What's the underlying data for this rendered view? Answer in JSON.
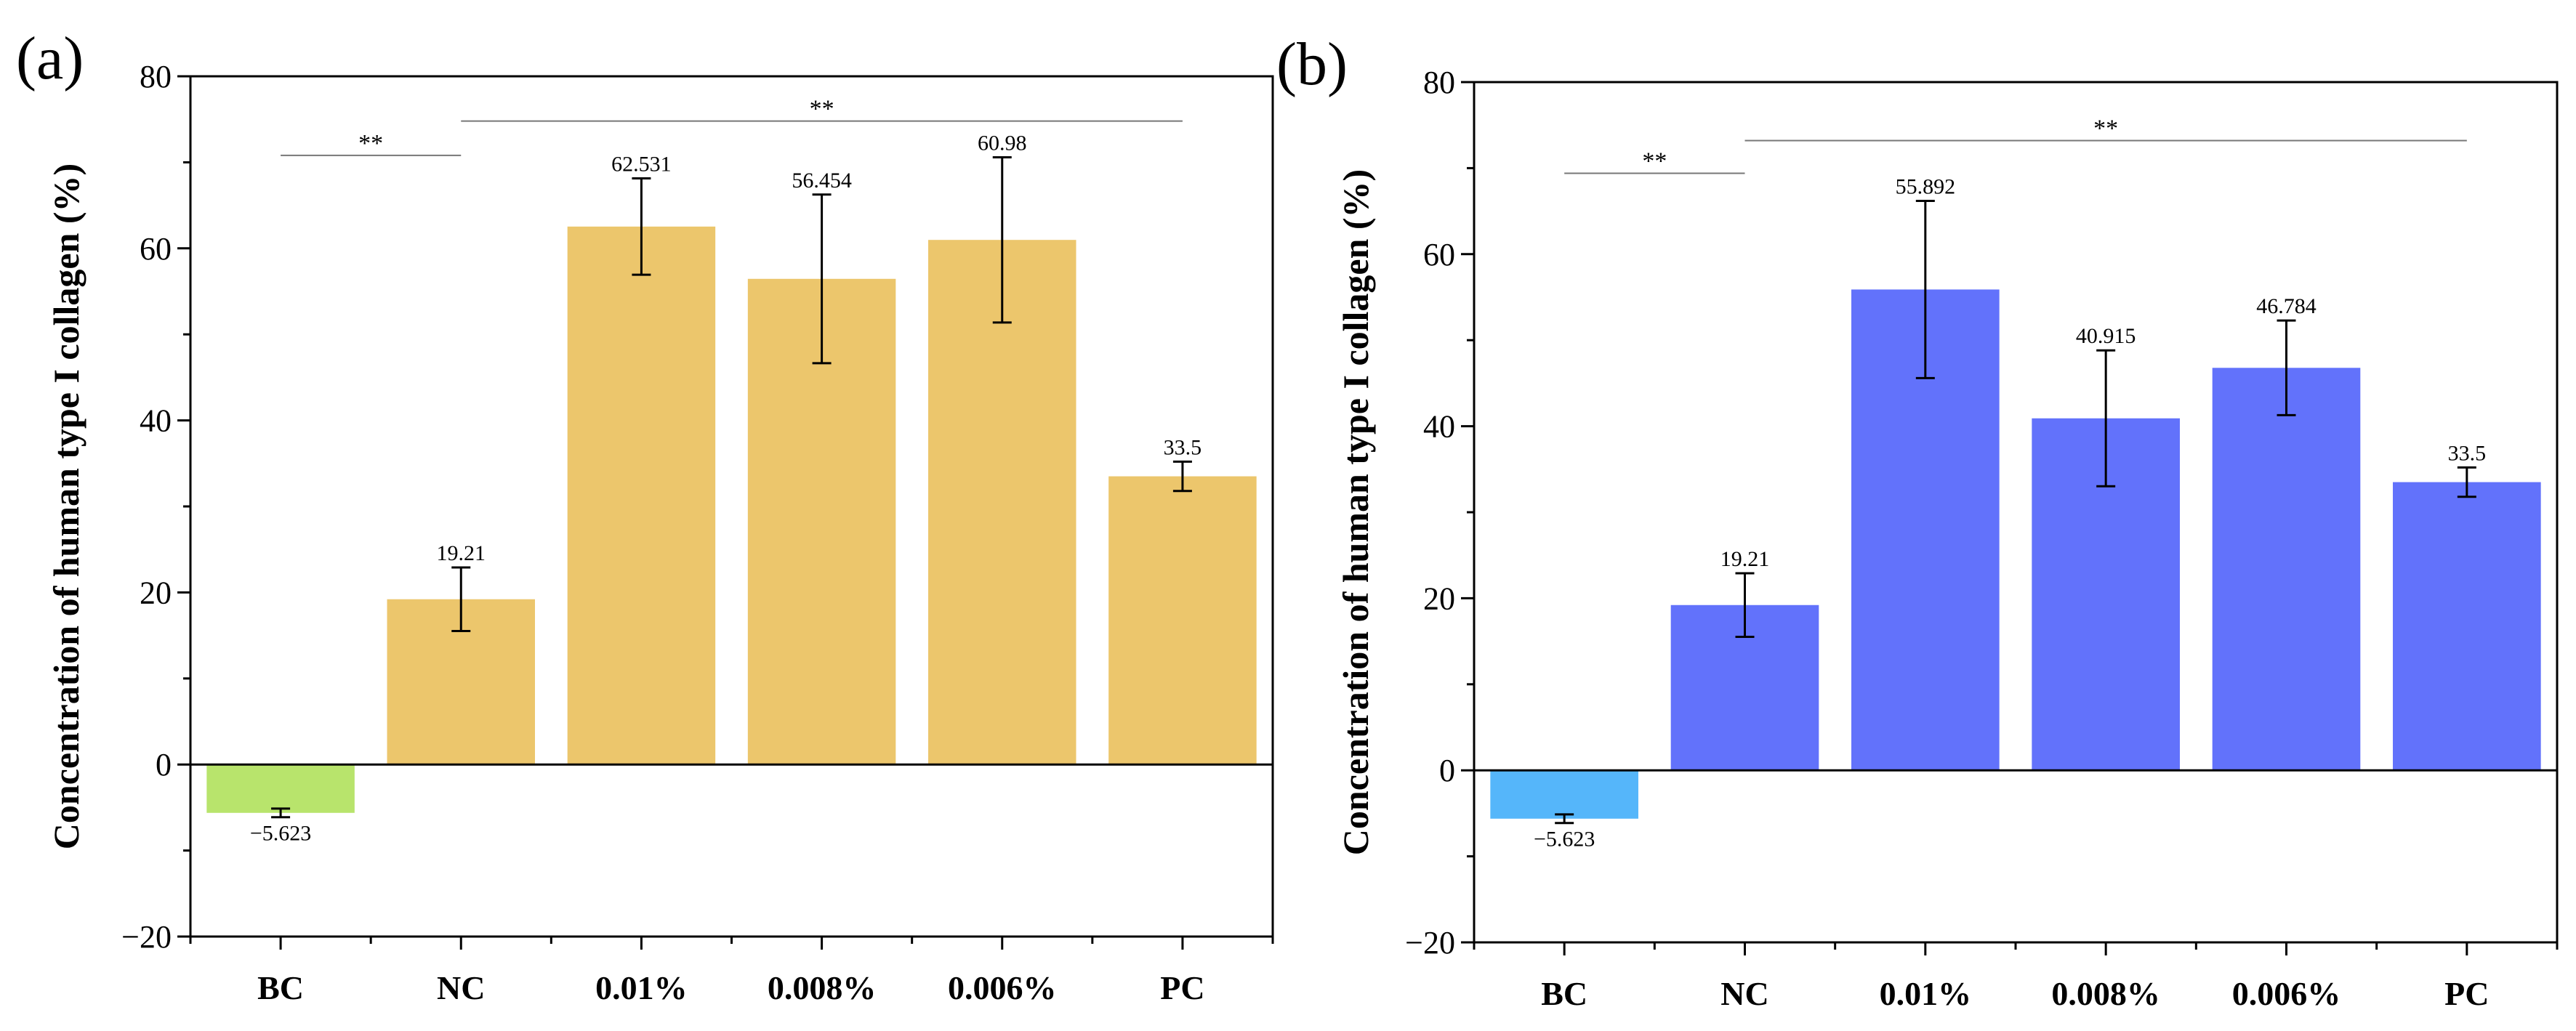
{
  "chart_data": [
    {
      "type": "bar",
      "panel_label": "(a)",
      "title": "",
      "xlabel": "",
      "ylabel": "Concentration of human type I collagen (%)",
      "ylim": [
        -20,
        80
      ],
      "yticks": [
        -20,
        0,
        20,
        40,
        60,
        80
      ],
      "categories": [
        "BC",
        "NC",
        "0.01%",
        "0.008%",
        "0.006%",
        "PC"
      ],
      "values": [
        -5.623,
        19.21,
        62.531,
        56.454,
        60.98,
        33.5
      ],
      "value_labels": [
        "−5.623",
        "19.21",
        "62.531",
        "56.454",
        "60.98",
        "33.5"
      ],
      "errors": [
        0.5,
        3.7,
        5.6,
        9.8,
        9.6,
        1.7
      ],
      "colors": [
        "#b8e46c",
        "#ecc66c",
        "#ecc66c",
        "#ecc66c",
        "#ecc66c",
        "#ecc66c"
      ],
      "significance": [
        {
          "label": "**",
          "from": "BC",
          "to": "NC",
          "y": 70.8
        },
        {
          "label": "**",
          "from": "NC",
          "to": "PC",
          "y": 74.8
        }
      ]
    },
    {
      "type": "bar",
      "panel_label": "(b)",
      "title": "",
      "xlabel": "",
      "ylabel": "Concentration of human type I collagen (%)",
      "ylim": [
        -20,
        80
      ],
      "yticks": [
        -20,
        0,
        20,
        40,
        60,
        80
      ],
      "categories": [
        "BC",
        "NC",
        "0.01%",
        "0.008%",
        "0.006%",
        "PC"
      ],
      "values": [
        -5.623,
        19.21,
        55.892,
        40.915,
        46.784,
        33.5
      ],
      "value_labels": [
        "−5.623",
        "19.21",
        "55.892",
        "40.915",
        "46.784",
        "33.5"
      ],
      "errors": [
        0.5,
        3.7,
        10.3,
        7.9,
        5.5,
        1.7
      ],
      "colors": [
        "#55b6fa",
        "#6272fb",
        "#6272fb",
        "#6272fb",
        "#6272fb",
        "#6272fb"
      ],
      "significance": [
        {
          "label": "**",
          "from": "BC",
          "to": "NC",
          "y": 69.4
        },
        {
          "label": "**",
          "from": "NC",
          "to": "PC",
          "y": 73.2
        }
      ]
    }
  ]
}
